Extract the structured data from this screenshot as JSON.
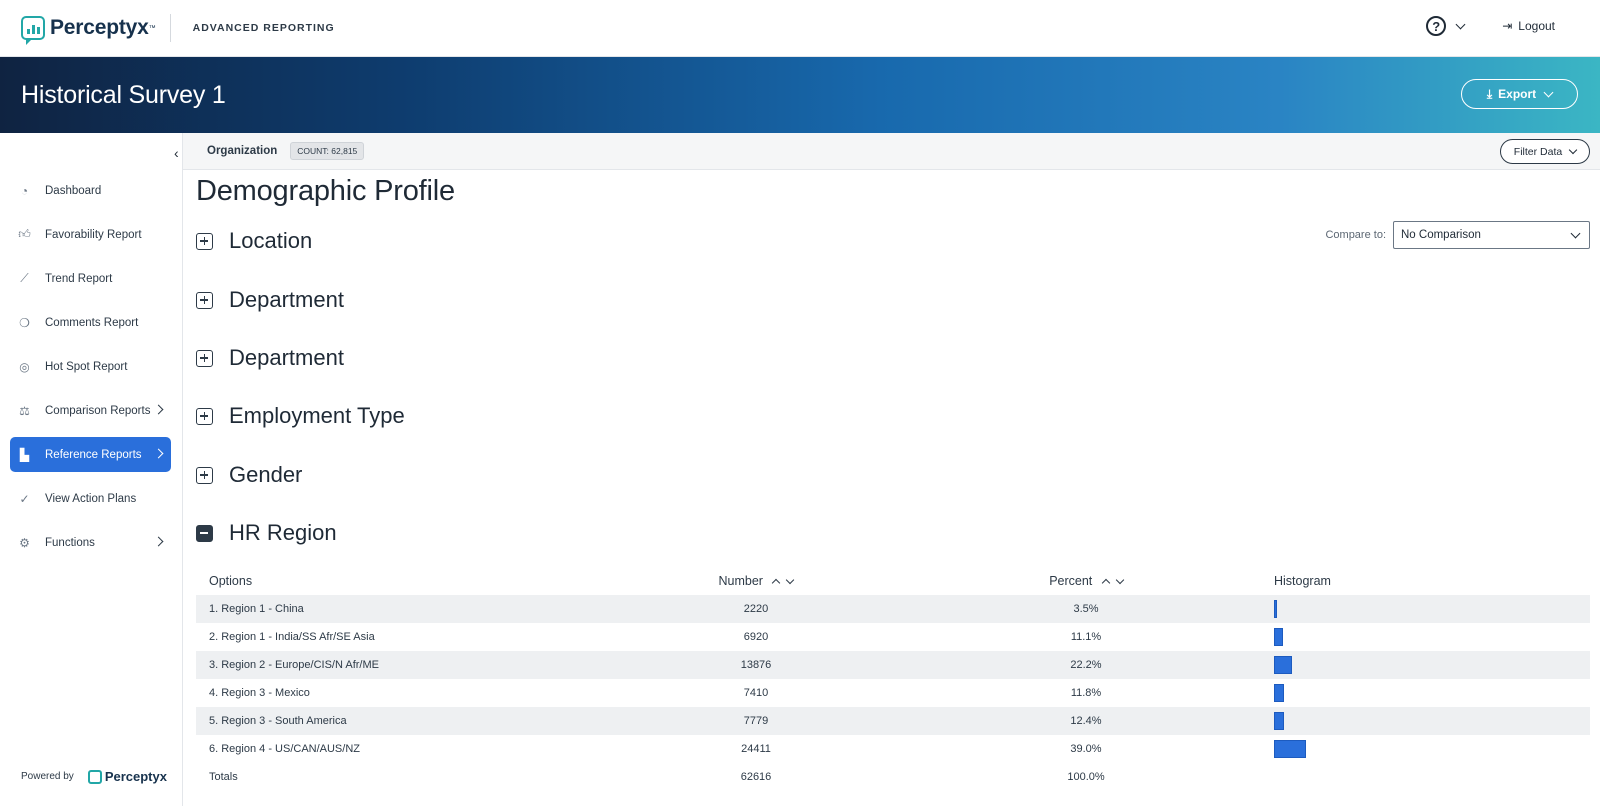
{
  "topbar": {
    "logo_text": "Perceptyx",
    "logo_tm": "™",
    "subtitle": "ADVANCED REPORTING",
    "help_label": "?",
    "logout_label": "Logout"
  },
  "banner": {
    "title": "Historical Survey 1",
    "export_label": "Export"
  },
  "sidebar": {
    "items": [
      {
        "label": "Dashboard",
        "icon": "dashboard-icon",
        "has_chevron": false,
        "active": false
      },
      {
        "label": "Favorability Report",
        "icon": "thumbs-up-icon",
        "has_chevron": false,
        "active": false
      },
      {
        "label": "Trend Report",
        "icon": "trend-line-icon",
        "has_chevron": false,
        "active": false
      },
      {
        "label": "Comments Report",
        "icon": "comments-icon",
        "has_chevron": false,
        "active": false
      },
      {
        "label": "Hot Spot Report",
        "icon": "target-icon",
        "has_chevron": false,
        "active": false
      },
      {
        "label": "Comparison Reports",
        "icon": "scale-icon",
        "has_chevron": true,
        "active": false
      },
      {
        "label": "Reference Reports",
        "icon": "bar-chart-icon",
        "has_chevron": true,
        "active": true
      },
      {
        "label": "View Action Plans",
        "icon": "check-circle-icon",
        "has_chevron": false,
        "active": false
      },
      {
        "label": "Functions",
        "icon": "gear-icon",
        "has_chevron": true,
        "active": false
      }
    ],
    "powered_by": "Powered by",
    "powered_logo": "Perceptyx"
  },
  "orgbar": {
    "label": "Organization",
    "count": "COUNT: 62,815",
    "filter_label": "Filter Data"
  },
  "main": {
    "title": "Demographic Profile",
    "compare_label": "Compare to:",
    "compare_value": "No Comparison",
    "sections": [
      {
        "title": "Location",
        "expanded": false
      },
      {
        "title": "Department",
        "expanded": false
      },
      {
        "title": "Department",
        "expanded": false
      },
      {
        "title": "Employment Type",
        "expanded": false
      },
      {
        "title": "Gender",
        "expanded": false
      },
      {
        "title": "HR Region",
        "expanded": true
      }
    ]
  },
  "table": {
    "headers": {
      "options": "Options",
      "number": "Number",
      "percent": "Percent",
      "histogram": "Histogram"
    },
    "rows": [
      {
        "option": "1. Region 1 - China",
        "number": "2220",
        "percent": "3.5%",
        "fraction": 0.035
      },
      {
        "option": "2. Region 1 - India/SS Afr/SE Asia",
        "number": "6920",
        "percent": "11.1%",
        "fraction": 0.111
      },
      {
        "option": "3. Region 2 - Europe/CIS/N Afr/ME",
        "number": "13876",
        "percent": "22.2%",
        "fraction": 0.222
      },
      {
        "option": "4. Region 3 - Mexico",
        "number": "7410",
        "percent": "11.8%",
        "fraction": 0.118
      },
      {
        "option": "5. Region 3 - South America",
        "number": "7779",
        "percent": "12.4%",
        "fraction": 0.124
      },
      {
        "option": "6. Region 4 - US/CAN/AUS/NZ",
        "number": "24411",
        "percent": "39.0%",
        "fraction": 0.39
      }
    ],
    "totals": {
      "label": "Totals",
      "number": "62616",
      "percent": "100.0%"
    }
  },
  "colors": {
    "accent": "#2a6fdb",
    "brand_teal": "#22a7a7",
    "banner_dark": "#0f2341"
  }
}
